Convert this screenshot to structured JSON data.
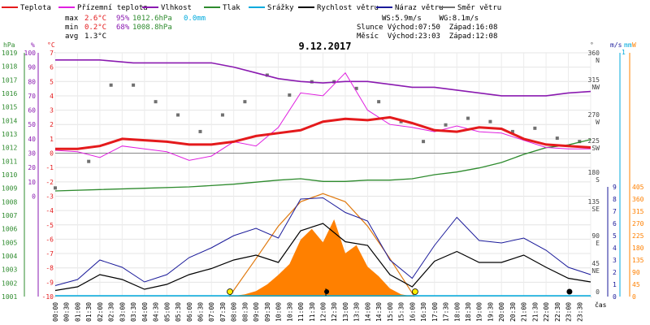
{
  "chart_data": {
    "type": "line",
    "title": "9.12.2017",
    "xlabel": "čas",
    "legend": {
      "placement": "top",
      "items": [
        {
          "label": "Teplota",
          "color": "#e41a1c"
        },
        {
          "label": "Přízemní teplota",
          "color": "#e020e0"
        },
        {
          "label": "Vlhkost",
          "color": "#8a1ab0"
        },
        {
          "label": "Tlak",
          "color": "#2e8b2e"
        },
        {
          "label": "Srážky",
          "color": "#00aadd"
        },
        {
          "label": "Rychlost větru",
          "color": "#000000"
        },
        {
          "label": "Náraz větru",
          "color": "#1a1a9a"
        },
        {
          "label": "Směr větru",
          "color": "#707070"
        }
      ]
    },
    "stats": {
      "rows": [
        {
          "label": "max",
          "temp": "2.6°C",
          "hum": "95%",
          "press": "1012.6hPa",
          "rain": "0.0mm"
        },
        {
          "label": "min",
          "temp": "0.2°C",
          "hum": "68%",
          "press": "1008.8hPa",
          "rain": ""
        },
        {
          "label": "avg",
          "temp": "1.3°C",
          "hum": "",
          "press": "",
          "rain": ""
        }
      ],
      "wind_line": "WS:5.9m/s    WG:8.1m/s",
      "sun_line": "Slunce Východ:07:50  Západ:16:08",
      "moon_line": "Měsíc  Východ:23:03  Západ:12:08"
    },
    "x_ticks": [
      "00:00",
      "00:30",
      "01:00",
      "01:30",
      "02:00",
      "02:30",
      "03:00",
      "03:30",
      "04:00",
      "04:30",
      "05:00",
      "05:30",
      "06:00",
      "06:30",
      "07:00",
      "07:30",
      "08:00",
      "08:30",
      "09:00",
      "09:30",
      "10:00",
      "10:30",
      "11:00",
      "11:30",
      "12:00",
      "12:30",
      "13:00",
      "13:30",
      "14:00",
      "14:30",
      "15:00",
      "15:30",
      "16:00",
      "16:30",
      "17:00",
      "17:30",
      "18:00",
      "18:30",
      "19:00",
      "19:30",
      "20:00",
      "20:30",
      "21:00",
      "21:30",
      "22:00",
      "22:30",
      "23:00",
      "23:30"
    ],
    "axes": {
      "pressure": {
        "unit": "hPa",
        "range": [
          1001,
          1019
        ],
        "ticks": [
          "1019",
          "1018",
          "1017",
          "1016",
          "1015",
          "1014",
          "1013",
          "1012",
          "1011",
          "1010",
          "1009",
          "1008",
          "1007",
          "1006",
          "1005",
          "1004",
          "1003",
          "1002",
          "1001"
        ]
      },
      "humidity": {
        "unit": "%",
        "range": [
          0,
          100
        ],
        "ticks": [
          "100",
          "90",
          "80",
          "70",
          "60",
          "50",
          "40",
          "30",
          "20",
          "10",
          "0"
        ]
      },
      "temperature": {
        "unit": "°C",
        "range": [
          -10,
          7
        ],
        "ticks": [
          "7",
          "6",
          "5",
          "4",
          "3",
          "2",
          "1",
          "0",
          "-1",
          "-2",
          "-3",
          "-4",
          "-5",
          "-6",
          "-7",
          "-8",
          "-9",
          "-10"
        ]
      },
      "direction": {
        "unit": "°",
        "ticks": [
          {
            "deg": "360",
            "dir": "N"
          },
          {
            "deg": "315",
            "dir": "NW"
          },
          {
            "deg": "270",
            "dir": "W"
          },
          {
            "deg": "225",
            "dir": "SW"
          },
          {
            "deg": "180",
            "dir": "S"
          },
          {
            "deg": "135",
            "dir": "SE"
          },
          {
            "deg": "90",
            "dir": "E"
          },
          {
            "deg": "45",
            "dir": "NE"
          },
          {
            "deg": "0",
            "dir": ""
          }
        ]
      },
      "wind": {
        "unit": "m/s",
        "range": [
          0,
          9
        ],
        "ticks": [
          "9",
          "8",
          "7",
          "6",
          "5",
          "4",
          "3",
          "2",
          "1",
          "0"
        ]
      },
      "rain": {
        "unit": "mm",
        "value": "1"
      },
      "solar": {
        "unit": "W",
        "range": [
          0,
          405
        ],
        "ticks": [
          "405",
          "360",
          "315",
          "270",
          "225",
          "180",
          "135",
          "90",
          "45",
          "0"
        ]
      }
    },
    "series": [
      {
        "name": "Teplota",
        "color": "#e41a1c",
        "x": [
          0,
          1,
          2,
          3,
          4,
          5,
          6,
          7,
          8,
          9,
          10,
          11,
          12,
          13,
          14,
          15,
          16,
          17,
          18,
          19,
          20,
          21,
          22,
          23,
          24
        ],
        "values": [
          0.3,
          0.3,
          0.5,
          1.0,
          0.9,
          0.8,
          0.6,
          0.6,
          0.8,
          1.2,
          1.4,
          1.6,
          2.2,
          2.4,
          2.3,
          2.5,
          2.1,
          1.6,
          1.5,
          1.8,
          1.7,
          1.0,
          0.6,
          0.5,
          0.4
        ]
      },
      {
        "name": "Přízemní teplota",
        "color": "#e020e0",
        "x": [
          0,
          1,
          2,
          3,
          4,
          5,
          6,
          7,
          8,
          9,
          10,
          11,
          12,
          13,
          14,
          15,
          16,
          17,
          18,
          19,
          20,
          21,
          22,
          23,
          24
        ],
        "values": [
          0.2,
          0.1,
          -0.3,
          0.5,
          0.3,
          0.1,
          -0.5,
          -0.2,
          0.8,
          0.5,
          1.8,
          4.2,
          4.0,
          5.6,
          3.0,
          2.0,
          1.8,
          1.5,
          1.9,
          1.5,
          1.4,
          0.9,
          0.4,
          0.3,
          0.3
        ]
      },
      {
        "name": "Vlhkost",
        "color": "#8a1ab0",
        "x": [
          0,
          2,
          3.5,
          5,
          6,
          7,
          8,
          9,
          10,
          11,
          12,
          13,
          14,
          15,
          16,
          17,
          18,
          19,
          20,
          21,
          22,
          23,
          24
        ],
        "values": [
          95,
          95,
          93,
          93,
          93,
          93,
          90,
          86,
          82,
          80,
          79,
          80,
          80,
          78,
          76,
          76,
          74,
          72,
          70,
          70,
          70,
          72,
          73
        ]
      },
      {
        "name": "Tlak",
        "color": "#2e8b2e",
        "x": [
          0,
          2,
          4,
          6,
          8,
          10,
          11,
          12,
          13,
          14,
          15,
          16,
          17,
          18,
          19,
          20,
          21,
          22,
          23,
          24
        ],
        "values": [
          1008.8,
          1008.9,
          1009.0,
          1009.1,
          1009.3,
          1009.6,
          1009.7,
          1009.5,
          1009.5,
          1009.6,
          1009.6,
          1009.7,
          1010.0,
          1010.2,
          1010.5,
          1010.9,
          1011.5,
          1012.0,
          1012.2,
          1012.6
        ]
      },
      {
        "name": "Rychlost větru",
        "color": "#000000",
        "x": [
          0,
          1,
          2,
          3,
          4,
          5,
          6,
          7,
          8,
          9,
          10,
          11,
          12,
          13,
          14,
          15,
          16,
          17,
          18,
          19,
          20,
          21,
          22,
          23,
          24
        ],
        "values": [
          0.5,
          0.8,
          1.8,
          1.4,
          0.6,
          1.0,
          1.8,
          2.3,
          3.0,
          3.4,
          2.8,
          5.4,
          6.0,
          4.5,
          4.2,
          1.8,
          0.8,
          2.9,
          3.7,
          2.8,
          2.8,
          3.4,
          2.4,
          1.5,
          1.2
        ]
      },
      {
        "name": "Náraz větru",
        "color": "#1a1a9a",
        "x": [
          0,
          1,
          2,
          3,
          4,
          5,
          6,
          7,
          8,
          9,
          10,
          11,
          12,
          13,
          14,
          15,
          16,
          17,
          18,
          19,
          20,
          21,
          22,
          23,
          24
        ],
        "values": [
          0.9,
          1.4,
          3.0,
          2.4,
          1.2,
          1.8,
          3.2,
          4.0,
          5.0,
          5.6,
          4.8,
          8.0,
          8.1,
          6.9,
          6.2,
          3.0,
          1.5,
          4.2,
          6.5,
          4.6,
          4.4,
          4.8,
          3.8,
          2.4,
          1.8
        ]
      },
      {
        "name": "Směr větru",
        "color": "#707070",
        "x": [
          0,
          1.5,
          2.5,
          3.5,
          4.5,
          5.5,
          6.5,
          7.5,
          8.5,
          9.5,
          10.5,
          11.5,
          12.5,
          13.5,
          14.5,
          15.5,
          16.5,
          17.5,
          18.5,
          19.5,
          20.5,
          21.5,
          22.5,
          23.5
        ],
        "values": [
          160,
          200,
          315,
          315,
          290,
          270,
          245,
          270,
          290,
          330,
          300,
          320,
          320,
          310,
          290,
          260,
          230,
          255,
          265,
          260,
          245,
          250,
          235,
          230
        ]
      },
      {
        "name": "Solar",
        "color": "#ff8000",
        "x": [
          7.8,
          8.5,
          9,
          9.5,
          10,
          10.5,
          11,
          11.5,
          12,
          12.5,
          13,
          13.5,
          14,
          14.5,
          15,
          15.5,
          16.1
        ],
        "values": [
          0,
          8,
          20,
          45,
          80,
          120,
          210,
          250,
          200,
          285,
          160,
          190,
          110,
          75,
          30,
          8,
          0
        ]
      },
      {
        "name": "Solar max",
        "color": "#ff8000",
        "x": [
          7.8,
          9,
          10,
          11,
          12,
          13,
          14,
          15,
          16.1
        ],
        "values": [
          0,
          140,
          260,
          350,
          380,
          350,
          260,
          140,
          0
        ]
      }
    ],
    "markers": [
      {
        "type": "sunrise",
        "x": 7.83
      },
      {
        "type": "moonset",
        "x": 12.13
      },
      {
        "type": "sunset",
        "x": 16.13
      },
      {
        "type": "moonrise",
        "x": 23.05
      }
    ]
  }
}
